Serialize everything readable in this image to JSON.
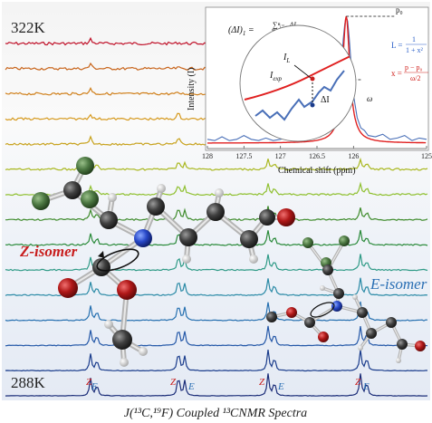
{
  "colors": {
    "spectra": [
      "#c0122a",
      "#c8641a",
      "#d0801c",
      "#d69a1e",
      "#c8a21e",
      "#aab820",
      "#8fc030",
      "#3f8c2c",
      "#2a8a3a",
      "#2e9a86",
      "#2a8aa6",
      "#2670b0",
      "#2458a8",
      "#1a3c8c",
      "#1a2c78"
    ],
    "z_red": "#c81e1e",
    "e_blue": "#2a6fb4",
    "model_red": "#e02020",
    "data_blue": "#4a70b8"
  },
  "labels": {
    "temp_high": "322K",
    "temp_low": "288K",
    "z_isomer": "Z-isomer",
    "e_isomer": "E-isomer",
    "caption": "J(¹³C,¹⁹F) Coupled ¹³CNMR Spectra",
    "peak_labels": [
      {
        "z": "Z",
        "e": "E"
      },
      {
        "z": "Z",
        "e": "E"
      },
      {
        "z": "Z",
        "e": "E"
      },
      {
        "z": "Z",
        "e": "E"
      }
    ]
  },
  "inset": {
    "formula_left": "(ΔI)",
    "formula_left_sub": "1",
    "formula_num": "∑ⁿᵢ₌₀ ΔI",
    "formula_den": "n",
    "label_IL": "I",
    "label_IL_sub": "L",
    "label_Iexp": "I",
    "label_Iexp_sub": "exp",
    "label_deltaI": "ΔI",
    "label_p0": "p₀",
    "label_omega": "ω",
    "eq_L_lhs": "L =",
    "eq_L_num": "1",
    "eq_L_den": "1 + x²",
    "eq_x_lhs": "x =",
    "eq_x_num": "p − p₀",
    "eq_x_den": "ω/2"
  },
  "chart_data": {
    "type": "line",
    "xlabel": "Chemical shift (ppm)",
    "ylabel": "Intensity (I)",
    "xlim": [
      128,
      125
    ],
    "x_reversed": true,
    "x_ticks": [
      "128",
      "127.5",
      "127",
      "126.5",
      "126",
      "125"
    ],
    "grid": false,
    "series": [
      {
        "kind": "experimental",
        "color": "#4a70b8",
        "x": [
          128.0,
          127.9,
          127.8,
          127.7,
          127.6,
          127.5,
          127.4,
          127.3,
          127.2,
          127.1,
          127.0,
          126.9,
          126.8,
          126.7,
          126.6,
          126.5,
          126.45,
          126.4,
          126.35,
          126.3,
          126.25,
          126.2,
          126.18,
          126.16,
          126.14,
          126.12,
          126.1,
          126.08,
          126.06,
          126.04,
          126.02,
          126.0,
          125.95,
          125.9,
          125.85,
          125.8,
          125.7,
          125.6,
          125.5,
          125.4,
          125.3,
          125.2,
          125.1,
          125.0
        ],
        "y": [
          0.03,
          0.02,
          0.05,
          0.02,
          0.03,
          0.06,
          0.03,
          0.02,
          0.04,
          0.02,
          0.03,
          0.05,
          0.03,
          0.06,
          0.04,
          0.07,
          0.05,
          0.09,
          0.12,
          0.16,
          0.24,
          0.38,
          0.5,
          0.66,
          0.82,
          0.94,
          1.0,
          0.96,
          0.84,
          0.68,
          0.52,
          0.38,
          0.2,
          0.12,
          0.1,
          0.06,
          0.05,
          0.07,
          0.03,
          0.04,
          0.06,
          0.02,
          0.04,
          0.03
        ]
      },
      {
        "kind": "lorentzian_fit",
        "color": "#e02020",
        "p0": 126.1,
        "omega": 0.12,
        "amplitude": 1.0
      }
    ]
  }
}
